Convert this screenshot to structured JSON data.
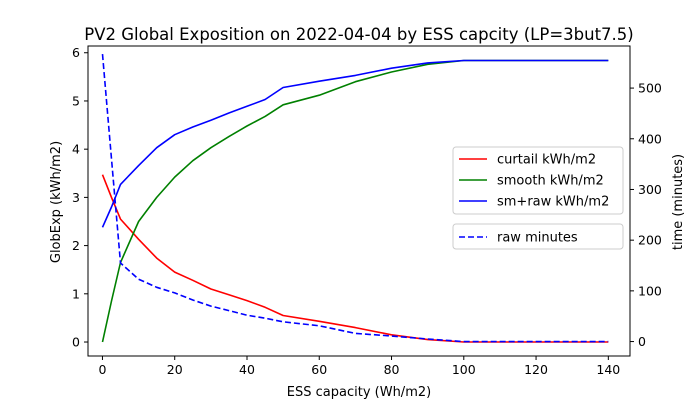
{
  "chart_data": {
    "type": "line",
    "title": "PV2 Global Exposition on 2022-04-04 by ESS capcity (LP=3but7.5)",
    "xlabel": "ESS capacity (Wh/m2)",
    "ylabel": "GlobExp (kWh/m2)",
    "y2label": "time (minutes)",
    "xlim": [
      -4,
      146
    ],
    "ylim": [
      -0.29,
      6.14
    ],
    "y2lim": [
      -28.5,
      583
    ],
    "xticks": [
      0,
      20,
      40,
      60,
      80,
      100,
      120,
      140
    ],
    "yticks": [
      0,
      1,
      2,
      3,
      4,
      5,
      6
    ],
    "y2ticks": [
      0,
      100,
      200,
      300,
      400,
      500
    ],
    "grid": false,
    "legend_placement": "center-right",
    "series": [
      {
        "name": "curtail kWh/m2",
        "axis": "left",
        "color": "#ff0000",
        "style": "solid",
        "x": [
          0,
          2.5,
          5,
          10,
          15,
          20,
          25,
          30,
          35,
          40,
          45,
          50,
          60,
          70,
          80,
          90,
          100,
          120,
          140
        ],
        "values": [
          3.47,
          3.0,
          2.55,
          2.13,
          1.74,
          1.45,
          1.28,
          1.1,
          0.98,
          0.86,
          0.72,
          0.55,
          0.43,
          0.3,
          0.15,
          0.05,
          0.0,
          0.0,
          0.0
        ]
      },
      {
        "name": "smooth kWh/m2",
        "axis": "left",
        "color": "#008000",
        "style": "solid",
        "x": [
          0,
          2.5,
          5,
          10,
          15,
          20,
          25,
          30,
          35,
          40,
          45,
          50,
          60,
          70,
          80,
          90,
          100,
          120,
          140
        ],
        "values": [
          0.0,
          0.85,
          1.65,
          2.5,
          3.0,
          3.42,
          3.76,
          4.03,
          4.26,
          4.48,
          4.68,
          4.92,
          5.12,
          5.4,
          5.6,
          5.76,
          5.84,
          5.84,
          5.84
        ]
      },
      {
        "name": "sm+raw kWh/m2",
        "axis": "left",
        "color": "#0000ff",
        "style": "solid",
        "x": [
          0,
          2.5,
          5,
          10,
          15,
          20,
          25,
          30,
          35,
          40,
          45,
          50,
          60,
          70,
          80,
          90,
          100,
          120,
          140
        ],
        "values": [
          2.38,
          2.8,
          3.27,
          3.66,
          4.03,
          4.3,
          4.46,
          4.6,
          4.75,
          4.89,
          5.03,
          5.28,
          5.41,
          5.53,
          5.68,
          5.79,
          5.84,
          5.84,
          5.84
        ]
      },
      {
        "name": "raw minutes",
        "axis": "right",
        "color": "#0000ff",
        "style": "dashed",
        "x": [
          0,
          2.5,
          5,
          10,
          15,
          20,
          25,
          30,
          35,
          40,
          45,
          50,
          60,
          70,
          80,
          90,
          100,
          120,
          140
        ],
        "values": [
          567,
          360,
          155,
          123,
          107,
          96,
          82,
          70,
          61,
          52,
          46,
          39,
          31,
          16,
          11,
          5,
          0,
          0,
          0
        ]
      }
    ]
  }
}
